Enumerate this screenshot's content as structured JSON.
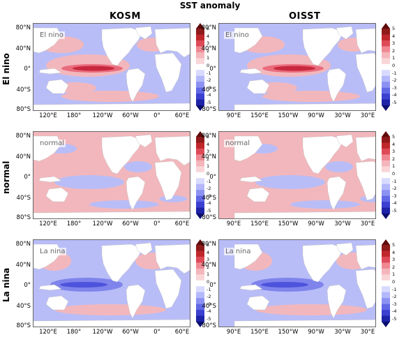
{
  "title": "SST anomaly",
  "columns": [
    "KOSM",
    "OISST"
  ],
  "rows": [
    {
      "name": "El nino",
      "label": "El nino",
      "mode": "elnino"
    },
    {
      "name": "normal",
      "label": "normal",
      "mode": "normal"
    },
    {
      "name": "La nina",
      "label": "La nina",
      "mode": "lanina"
    }
  ],
  "lat_ticks": [
    "80°N",
    "40°N",
    "0°",
    "40°S",
    "80°S"
  ],
  "lon_ticks": {
    "KOSM": [
      "120°E",
      "180°",
      "120°W",
      "60°W",
      "0°",
      "60°E"
    ],
    "OISST": [
      "90°E",
      "150°E",
      "150°W",
      "90°W",
      "30°W",
      "30°E"
    ]
  },
  "colorbar": {
    "ticks": [
      "5",
      "4",
      "3",
      "2",
      "1",
      "0",
      "-1",
      "-2",
      "-3",
      "-4",
      "-5"
    ],
    "colors": [
      "#5e0a0a",
      "#8e1a1a",
      "#c0272b",
      "#de4a57",
      "#ef8893",
      "#f4b5bb",
      "#f9d5d8",
      "#ffffff",
      "#d8dbff",
      "#b3b8fb",
      "#8c92f2",
      "#6168e6",
      "#3b40d0",
      "#1e23a8",
      "#0c0f6f"
    ]
  },
  "colors": {
    "ocean_pos": "#f2b7bc",
    "ocean_neg": "#b9bdf7",
    "warm": "#e96c7d",
    "hot": "#c8293e",
    "cool": "#7f84ec",
    "cold": "#4d53dc",
    "land": "#ffffff"
  }
}
